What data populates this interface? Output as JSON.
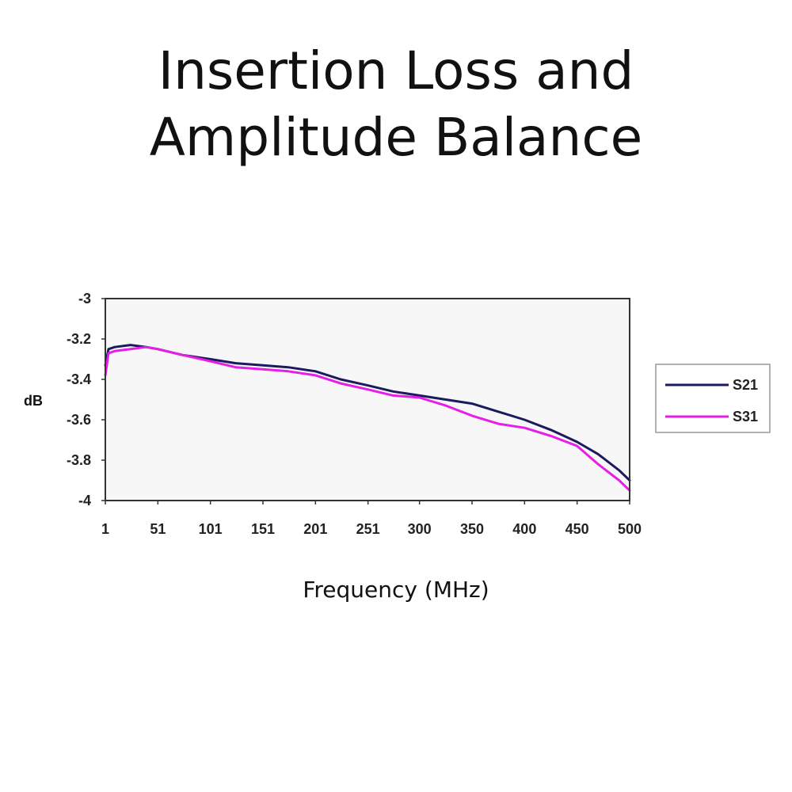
{
  "title_lines": [
    "Insertion Loss and",
    "Amplitude Balance"
  ],
  "chart_data": {
    "type": "line",
    "title": "Insertion Loss and Amplitude Balance",
    "xlabel": "Frequency (MHz)",
    "ylabel": "dB",
    "ylim": [
      -4,
      -3
    ],
    "yticks": [
      -3,
      -3.2,
      -3.4,
      -3.6,
      -3.8,
      -4
    ],
    "ytick_labels": [
      "-3",
      "-3.2",
      "-3.4",
      "-3.6",
      "-3.8",
      "-4"
    ],
    "xlim": [
      1,
      500
    ],
    "xticks": [
      1,
      51,
      101,
      151,
      201,
      251,
      300,
      350,
      400,
      450,
      500
    ],
    "xtick_labels": [
      "1",
      "51",
      "101",
      "151",
      "201",
      "251",
      "300",
      "350",
      "400",
      "450",
      "500"
    ],
    "legend_position": "right",
    "series": [
      {
        "name": "S21",
        "color": "#1a1a5e",
        "x": [
          1,
          4,
          10,
          25,
          40,
          51,
          75,
          101,
          125,
          151,
          175,
          201,
          225,
          251,
          275,
          300,
          325,
          350,
          375,
          400,
          425,
          450,
          470,
          490,
          500
        ],
        "y": [
          -3.33,
          -3.25,
          -3.24,
          -3.23,
          -3.24,
          -3.25,
          -3.28,
          -3.3,
          -3.32,
          -3.33,
          -3.34,
          -3.36,
          -3.4,
          -3.43,
          -3.46,
          -3.48,
          -3.5,
          -3.52,
          -3.56,
          -3.6,
          -3.65,
          -3.71,
          -3.77,
          -3.85,
          -3.9
        ]
      },
      {
        "name": "S31",
        "color": "#e61ee6",
        "x": [
          1,
          4,
          10,
          25,
          40,
          51,
          75,
          101,
          125,
          151,
          175,
          201,
          225,
          251,
          275,
          300,
          325,
          350,
          375,
          400,
          425,
          450,
          470,
          490,
          500
        ],
        "y": [
          -3.38,
          -3.27,
          -3.26,
          -3.25,
          -3.24,
          -3.25,
          -3.28,
          -3.31,
          -3.34,
          -3.35,
          -3.36,
          -3.38,
          -3.42,
          -3.45,
          -3.48,
          -3.49,
          -3.53,
          -3.58,
          -3.62,
          -3.64,
          -3.68,
          -3.73,
          -3.82,
          -3.9,
          -3.95
        ]
      }
    ]
  }
}
